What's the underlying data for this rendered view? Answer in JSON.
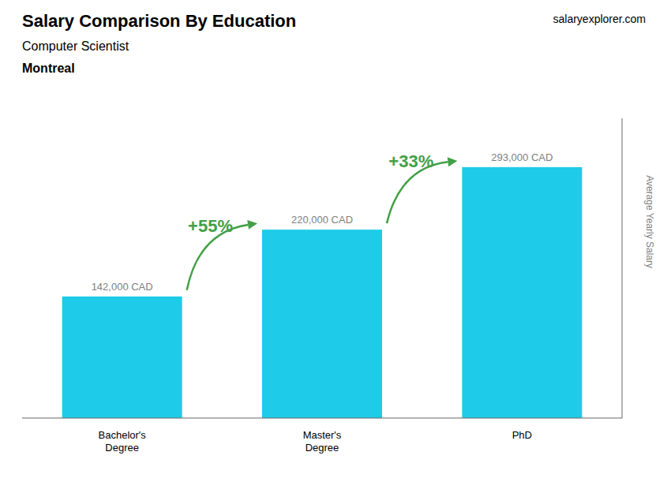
{
  "chart_data": {
    "type": "bar",
    "title": "Salary Comparison By Education",
    "subtitle": "Computer Scientist",
    "annotations": [
      "Montreal",
      "salaryexplorer.com"
    ],
    "categories": [
      "Bachelor's\nDegree",
      "Master's\nDegree",
      "PhD"
    ],
    "values": [
      142000,
      220000,
      293000
    ],
    "value_labels": [
      "142,000 CAD",
      "220,000 CAD",
      "293,000 CAD"
    ],
    "data_labels": true,
    "color": "#1ECBE8",
    "ylabel": "Average Yearly Salary",
    "ylim": [
      0,
      350000
    ],
    "tick_labels": "x",
    "grid": false,
    "arrow_labels": [
      {
        "text": "+55%",
        "color": "#43a047"
      },
      {
        "text": "+33%",
        "color": "#43a047"
      }
    ]
  }
}
